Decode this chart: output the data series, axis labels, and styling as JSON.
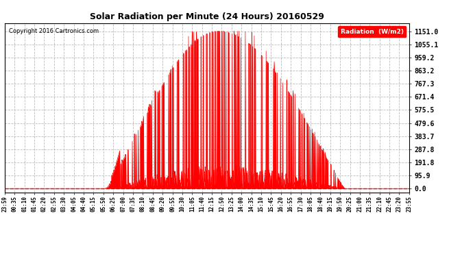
{
  "title": "Solar Radiation per Minute (24 Hours) 20160529",
  "copyright_text": "Copyright 2016 Cartronics.com",
  "legend_label": "Radiation  (W/m2)",
  "bar_color": "#ff0000",
  "background_color": "#ffffff",
  "plot_bg_color": "#ffffff",
  "grid_color": "#aaaaaa",
  "yticks": [
    0.0,
    95.9,
    191.8,
    287.8,
    383.7,
    479.6,
    575.5,
    671.4,
    767.3,
    863.2,
    959.2,
    1055.1,
    1151.0
  ],
  "ymax": 1151.0,
  "x_tick_labels": [
    "23:59",
    "00:35",
    "01:10",
    "01:45",
    "02:20",
    "02:55",
    "03:30",
    "04:05",
    "04:40",
    "05:15",
    "05:50",
    "06:25",
    "07:00",
    "07:35",
    "08:10",
    "08:45",
    "09:20",
    "09:55",
    "10:30",
    "11:05",
    "11:40",
    "12:15",
    "12:50",
    "13:25",
    "14:00",
    "14:35",
    "15:10",
    "15:45",
    "16:20",
    "16:55",
    "17:30",
    "18:05",
    "18:40",
    "19:15",
    "19:50",
    "20:25",
    "21:00",
    "21:35",
    "22:10",
    "22:45",
    "23:20",
    "23:55"
  ],
  "hline_color": "#ff0000",
  "sunrise_minute": 350,
  "sunset_minute": 1210,
  "peak_minute": 760,
  "n_minutes": 1440
}
